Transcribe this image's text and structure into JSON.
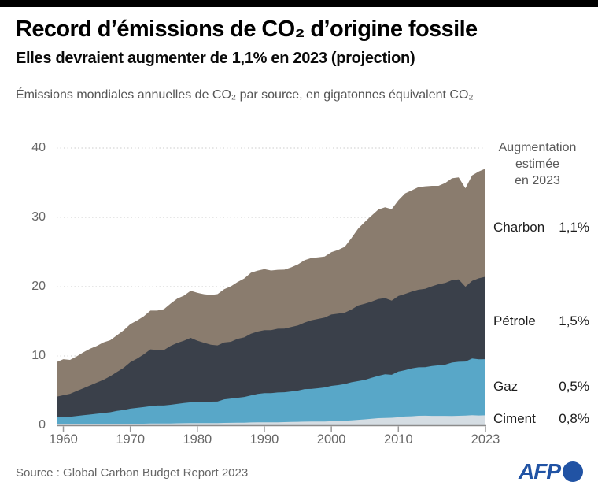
{
  "header": {
    "title": "Record d’émissions de CO₂ d’origine fossile",
    "subtitle": "Elles devraient augmenter de 1,1% en 2023 (projection)",
    "description": "Émissions mondiales annuelles de CO₂ par source, en gigatonnes équivalent CO₂"
  },
  "legend": {
    "header_lines": [
      "Augmentation",
      "estimée",
      "en 2023"
    ],
    "items": [
      {
        "label": "Charbon",
        "value": "1,1%",
        "color": "#8a7c6e"
      },
      {
        "label": "Pétrole",
        "value": "1,5%",
        "color": "#3a404a"
      },
      {
        "label": "Gaz",
        "value": "0,5%",
        "color": "#58a7c8"
      },
      {
        "label": "Ciment",
        "value": "0,8%",
        "color": "#d5dde3"
      }
    ]
  },
  "footer": {
    "source": "Source : Global Carbon Budget Report 2023",
    "brand": "AFP",
    "brand_color": "#2153a4"
  },
  "chart_data": {
    "type": "area",
    "stacked": true,
    "title": "Record d’émissions de CO₂ d’origine fossile",
    "ylabel": "gigatonnes équivalent CO₂",
    "xlabel": "",
    "ylim": [
      0,
      40
    ],
    "xlim": [
      1959,
      2023
    ],
    "y_ticks": [
      0,
      10,
      20,
      30,
      40
    ],
    "x_ticks": [
      1960,
      1970,
      1980,
      1990,
      2000,
      2010,
      2023
    ],
    "grid": "dotted-horizontal",
    "legend_position": "right",
    "x": [
      1959,
      1960,
      1961,
      1962,
      1963,
      1964,
      1965,
      1966,
      1967,
      1968,
      1969,
      1970,
      1971,
      1972,
      1973,
      1974,
      1975,
      1976,
      1977,
      1978,
      1979,
      1980,
      1981,
      1982,
      1983,
      1984,
      1985,
      1986,
      1987,
      1988,
      1989,
      1990,
      1991,
      1992,
      1993,
      1994,
      1995,
      1996,
      1997,
      1998,
      1999,
      2000,
      2001,
      2002,
      2003,
      2004,
      2005,
      2006,
      2007,
      2008,
      2009,
      2010,
      2011,
      2012,
      2013,
      2014,
      2015,
      2016,
      2017,
      2018,
      2019,
      2020,
      2021,
      2022,
      2023
    ],
    "series": [
      {
        "name": "Ciment",
        "color": "#d5dde3",
        "values": [
          0.12,
          0.13,
          0.13,
          0.14,
          0.14,
          0.15,
          0.16,
          0.17,
          0.17,
          0.18,
          0.2,
          0.2,
          0.21,
          0.23,
          0.25,
          0.25,
          0.25,
          0.26,
          0.28,
          0.3,
          0.31,
          0.31,
          0.31,
          0.31,
          0.32,
          0.34,
          0.35,
          0.37,
          0.38,
          0.41,
          0.42,
          0.42,
          0.43,
          0.43,
          0.46,
          0.48,
          0.5,
          0.52,
          0.54,
          0.54,
          0.55,
          0.58,
          0.6,
          0.65,
          0.71,
          0.78,
          0.85,
          0.94,
          1.02,
          1.05,
          1.08,
          1.15,
          1.26,
          1.3,
          1.36,
          1.38,
          1.35,
          1.35,
          1.35,
          1.34,
          1.36,
          1.39,
          1.44,
          1.41,
          1.43
        ]
      },
      {
        "name": "Gaz",
        "color": "#58a7c8",
        "values": [
          1.0,
          1.1,
          1.1,
          1.2,
          1.3,
          1.4,
          1.5,
          1.6,
          1.7,
          1.9,
          2.0,
          2.2,
          2.3,
          2.4,
          2.5,
          2.6,
          2.6,
          2.7,
          2.8,
          2.9,
          3.0,
          3.0,
          3.1,
          3.1,
          3.1,
          3.4,
          3.5,
          3.6,
          3.7,
          3.9,
          4.1,
          4.2,
          4.2,
          4.3,
          4.3,
          4.4,
          4.5,
          4.7,
          4.7,
          4.8,
          4.9,
          5.1,
          5.2,
          5.3,
          5.5,
          5.6,
          5.7,
          5.9,
          6.1,
          6.3,
          6.2,
          6.6,
          6.7,
          6.9,
          7.0,
          7.0,
          7.2,
          7.3,
          7.4,
          7.7,
          7.8,
          7.8,
          8.2,
          8.1,
          8.1
        ]
      },
      {
        "name": "Pétrole",
        "color": "#3a404a",
        "values": [
          3.0,
          3.1,
          3.3,
          3.6,
          3.9,
          4.2,
          4.5,
          4.8,
          5.2,
          5.6,
          6.1,
          6.7,
          7.1,
          7.6,
          8.2,
          8.0,
          8.0,
          8.5,
          8.8,
          9.0,
          9.3,
          8.9,
          8.5,
          8.2,
          8.1,
          8.2,
          8.2,
          8.5,
          8.6,
          8.9,
          9.0,
          9.1,
          9.1,
          9.2,
          9.2,
          9.3,
          9.4,
          9.6,
          9.9,
          10.0,
          10.1,
          10.3,
          10.3,
          10.3,
          10.5,
          10.9,
          11.0,
          11.0,
          11.1,
          11.0,
          10.7,
          10.9,
          11.0,
          11.1,
          11.2,
          11.3,
          11.5,
          11.7,
          11.8,
          11.9,
          11.9,
          10.8,
          11.2,
          11.7,
          11.9
        ]
      },
      {
        "name": "Charbon",
        "color": "#8a7c6e",
        "values": [
          5.0,
          5.2,
          4.9,
          5.0,
          5.2,
          5.3,
          5.3,
          5.4,
          5.2,
          5.3,
          5.4,
          5.5,
          5.5,
          5.5,
          5.6,
          5.7,
          5.9,
          6.1,
          6.4,
          6.5,
          6.8,
          6.9,
          7.0,
          7.2,
          7.4,
          7.7,
          8.0,
          8.2,
          8.5,
          8.8,
          8.8,
          8.8,
          8.6,
          8.5,
          8.5,
          8.6,
          8.8,
          9.0,
          9.0,
          8.9,
          8.8,
          9.0,
          9.2,
          9.5,
          10.3,
          11.1,
          11.8,
          12.4,
          12.9,
          13.1,
          13.2,
          13.8,
          14.5,
          14.6,
          14.8,
          14.8,
          14.5,
          14.2,
          14.4,
          14.7,
          14.7,
          14.2,
          15.2,
          15.4,
          15.6
        ]
      }
    ]
  }
}
